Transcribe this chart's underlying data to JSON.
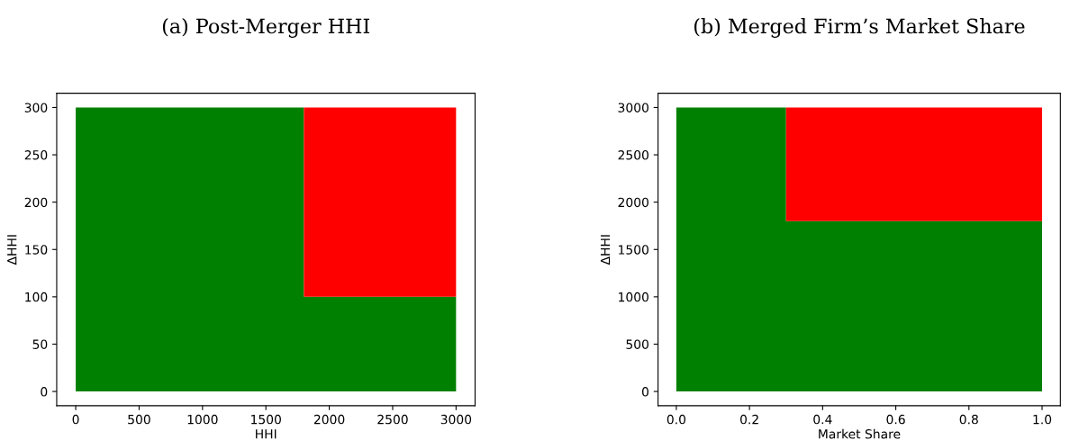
{
  "chart_data": [
    {
      "type": "area",
      "stacked": true,
      "title": "(a) Post-Merger HHI",
      "xlabel": "HHI",
      "ylabel": "ΔHHI",
      "x": [
        0,
        1800,
        1800,
        3000
      ],
      "series": [
        {
          "color": "#008000",
          "values": [
            300,
            300,
            100,
            100
          ]
        },
        {
          "color": "#ff0000",
          "values": [
            0,
            0,
            200,
            200
          ]
        }
      ],
      "xlim": [
        -150,
        3150
      ],
      "xticks": [
        0,
        500,
        1000,
        1500,
        2000,
        2500,
        3000
      ],
      "ylim": [
        -15,
        315
      ],
      "yticks": [
        0,
        50,
        100,
        150,
        200,
        250,
        300
      ],
      "grid": false,
      "legend": false
    },
    {
      "type": "area",
      "stacked": true,
      "title": "(b) Merged Firm’s Market Share",
      "xlabel": "Market Share",
      "ylabel": "ΔHHI",
      "x": [
        0,
        0.3,
        0.3,
        1
      ],
      "series": [
        {
          "color": "#008000",
          "values": [
            3000,
            3000,
            1800,
            1800
          ]
        },
        {
          "color": "#ff0000",
          "values": [
            0,
            0,
            1200,
            1200
          ]
        }
      ],
      "xlim": [
        -0.05,
        1.05
      ],
      "xticks": [
        {
          "value": 0,
          "label": "0.0"
        },
        0.2,
        0.4,
        0.6,
        0.8,
        {
          "value": 1,
          "label": "1.0"
        }
      ],
      "ylim": [
        -150,
        3150
      ],
      "yticks": [
        0,
        500,
        1000,
        1500,
        2000,
        2500,
        3000
      ],
      "grid": false,
      "legend": false
    }
  ]
}
